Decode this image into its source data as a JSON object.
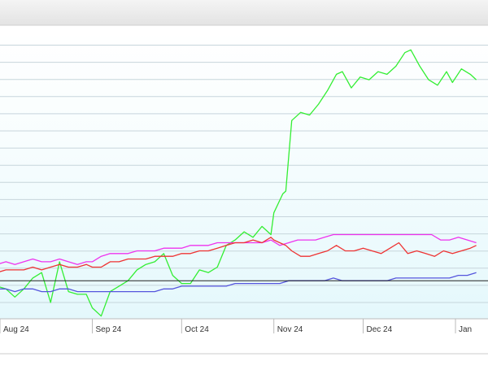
{
  "chart_data": {
    "type": "line",
    "x_labels": [
      "Aug 24",
      "Sep 24",
      "Oct 24",
      "Nov 24",
      "Dec 24",
      "Jan"
    ],
    "ylim": [
      0,
      100
    ],
    "grid": true,
    "reference_line": 14,
    "series": [
      {
        "color": "#33ee33",
        "points": [
          [
            "2024-07-25",
            14
          ],
          [
            "2024-07-28",
            1
          ],
          [
            "2024-07-31",
            12
          ],
          [
            "2024-08-03",
            11
          ],
          [
            "2024-08-06",
            8
          ],
          [
            "2024-08-09",
            11
          ],
          [
            "2024-08-12",
            15
          ],
          [
            "2024-08-15",
            17
          ],
          [
            "2024-08-18",
            6
          ],
          [
            "2024-08-21",
            21
          ],
          [
            "2024-08-24",
            10
          ],
          [
            "2024-08-27",
            9
          ],
          [
            "2024-08-30",
            9
          ],
          [
            "2024-09-01",
            4
          ],
          [
            "2024-09-04",
            1
          ],
          [
            "2024-09-07",
            10
          ],
          [
            "2024-09-10",
            12
          ],
          [
            "2024-09-13",
            14
          ],
          [
            "2024-09-16",
            18
          ],
          [
            "2024-09-19",
            20
          ],
          [
            "2024-09-22",
            21
          ],
          [
            "2024-09-25",
            24
          ],
          [
            "2024-09-28",
            16
          ],
          [
            "2024-10-01",
            13
          ],
          [
            "2024-10-04",
            13
          ],
          [
            "2024-10-07",
            18
          ],
          [
            "2024-10-10",
            17
          ],
          [
            "2024-10-13",
            19
          ],
          [
            "2024-10-16",
            27
          ],
          [
            "2024-10-19",
            29
          ],
          [
            "2024-10-22",
            32
          ],
          [
            "2024-10-25",
            30
          ],
          [
            "2024-10-28",
            34
          ],
          [
            "2024-10-31",
            31
          ],
          [
            "2024-11-01",
            39
          ],
          [
            "2024-11-04",
            46
          ],
          [
            "2024-11-05",
            47
          ],
          [
            "2024-11-07",
            73
          ],
          [
            "2024-11-10",
            76
          ],
          [
            "2024-11-13",
            75
          ],
          [
            "2024-11-16",
            79
          ],
          [
            "2024-11-19",
            84
          ],
          [
            "2024-11-22",
            90
          ],
          [
            "2024-11-24",
            91
          ],
          [
            "2024-11-27",
            85
          ],
          [
            "2024-11-30",
            89
          ],
          [
            "2024-12-03",
            88
          ],
          [
            "2024-12-06",
            91
          ],
          [
            "2024-12-09",
            90
          ],
          [
            "2024-12-12",
            93
          ],
          [
            "2024-12-15",
            98
          ],
          [
            "2024-12-17",
            99
          ],
          [
            "2024-12-20",
            93
          ],
          [
            "2024-12-23",
            88
          ],
          [
            "2024-12-26",
            86
          ],
          [
            "2024-12-29",
            91
          ],
          [
            "2024-12-31",
            87
          ],
          [
            "2025-01-03",
            92
          ],
          [
            "2025-01-06",
            90
          ],
          [
            "2025-01-08",
            88
          ]
        ]
      },
      {
        "color": "#ee33ee",
        "points": [
          [
            "2024-07-25",
            16
          ],
          [
            "2024-07-28",
            18
          ],
          [
            "2024-07-31",
            20
          ],
          [
            "2024-08-03",
            21
          ],
          [
            "2024-08-06",
            20
          ],
          [
            "2024-08-09",
            21
          ],
          [
            "2024-08-12",
            22
          ],
          [
            "2024-08-15",
            21
          ],
          [
            "2024-08-18",
            21
          ],
          [
            "2024-08-21",
            22
          ],
          [
            "2024-08-24",
            21
          ],
          [
            "2024-08-27",
            20
          ],
          [
            "2024-08-30",
            21
          ],
          [
            "2024-09-01",
            21
          ],
          [
            "2024-09-04",
            23
          ],
          [
            "2024-09-07",
            24
          ],
          [
            "2024-09-10",
            24
          ],
          [
            "2024-09-13",
            24
          ],
          [
            "2024-09-16",
            25
          ],
          [
            "2024-09-19",
            25
          ],
          [
            "2024-09-22",
            25
          ],
          [
            "2024-09-25",
            26
          ],
          [
            "2024-09-28",
            26
          ],
          [
            "2024-10-01",
            26
          ],
          [
            "2024-10-04",
            27
          ],
          [
            "2024-10-07",
            27
          ],
          [
            "2024-10-10",
            27
          ],
          [
            "2024-10-13",
            28
          ],
          [
            "2024-10-16",
            28
          ],
          [
            "2024-10-19",
            28
          ],
          [
            "2024-10-22",
            28
          ],
          [
            "2024-10-25",
            28
          ],
          [
            "2024-10-28",
            28
          ],
          [
            "2024-10-31",
            29
          ],
          [
            "2024-11-03",
            27
          ],
          [
            "2024-11-06",
            28
          ],
          [
            "2024-11-09",
            29
          ],
          [
            "2024-11-12",
            29
          ],
          [
            "2024-11-15",
            29
          ],
          [
            "2024-11-18",
            30
          ],
          [
            "2024-11-21",
            31
          ],
          [
            "2024-11-24",
            31
          ],
          [
            "2024-11-27",
            31
          ],
          [
            "2024-11-30",
            31
          ],
          [
            "2024-12-03",
            31
          ],
          [
            "2024-12-06",
            31
          ],
          [
            "2024-12-09",
            31
          ],
          [
            "2024-12-12",
            31
          ],
          [
            "2024-12-15",
            31
          ],
          [
            "2024-12-18",
            31
          ],
          [
            "2024-12-21",
            31
          ],
          [
            "2024-12-24",
            31
          ],
          [
            "2024-12-27",
            29
          ],
          [
            "2024-12-30",
            29
          ],
          [
            "2025-01-02",
            30
          ],
          [
            "2025-01-05",
            29
          ],
          [
            "2025-01-08",
            28
          ]
        ]
      },
      {
        "color": "#ee3333",
        "points": [
          [
            "2024-07-25",
            15
          ],
          [
            "2024-07-28",
            16
          ],
          [
            "2024-07-31",
            17
          ],
          [
            "2024-08-03",
            18
          ],
          [
            "2024-08-06",
            18
          ],
          [
            "2024-08-09",
            18
          ],
          [
            "2024-08-12",
            19
          ],
          [
            "2024-08-15",
            18
          ],
          [
            "2024-08-18",
            19
          ],
          [
            "2024-08-21",
            20
          ],
          [
            "2024-08-24",
            19
          ],
          [
            "2024-08-27",
            19
          ],
          [
            "2024-08-30",
            20
          ],
          [
            "2024-09-01",
            19
          ],
          [
            "2024-09-04",
            19
          ],
          [
            "2024-09-07",
            21
          ],
          [
            "2024-09-10",
            21
          ],
          [
            "2024-09-13",
            22
          ],
          [
            "2024-09-16",
            22
          ],
          [
            "2024-09-19",
            22
          ],
          [
            "2024-09-22",
            23
          ],
          [
            "2024-09-25",
            23
          ],
          [
            "2024-09-28",
            23
          ],
          [
            "2024-10-01",
            24
          ],
          [
            "2024-10-04",
            24
          ],
          [
            "2024-10-07",
            25
          ],
          [
            "2024-10-10",
            25
          ],
          [
            "2024-10-13",
            26
          ],
          [
            "2024-10-16",
            27
          ],
          [
            "2024-10-19",
            28
          ],
          [
            "2024-10-22",
            28
          ],
          [
            "2024-10-25",
            29
          ],
          [
            "2024-10-28",
            28
          ],
          [
            "2024-10-31",
            30
          ],
          [
            "2024-11-01",
            29
          ],
          [
            "2024-11-03",
            28
          ],
          [
            "2024-11-05",
            27
          ],
          [
            "2024-11-07",
            25
          ],
          [
            "2024-11-10",
            23
          ],
          [
            "2024-11-13",
            23
          ],
          [
            "2024-11-16",
            24
          ],
          [
            "2024-11-19",
            25
          ],
          [
            "2024-11-22",
            27
          ],
          [
            "2024-11-25",
            25
          ],
          [
            "2024-11-28",
            25
          ],
          [
            "2024-12-01",
            26
          ],
          [
            "2024-12-04",
            25
          ],
          [
            "2024-12-07",
            24
          ],
          [
            "2024-12-10",
            26
          ],
          [
            "2024-12-13",
            28
          ],
          [
            "2024-12-16",
            24
          ],
          [
            "2024-12-19",
            25
          ],
          [
            "2024-12-22",
            24
          ],
          [
            "2024-12-25",
            23
          ],
          [
            "2024-12-28",
            25
          ],
          [
            "2024-12-31",
            24
          ],
          [
            "2025-01-03",
            25
          ],
          [
            "2025-01-06",
            26
          ],
          [
            "2025-01-08",
            27
          ]
        ]
      },
      {
        "color": "#5555dd",
        "points": [
          [
            "2024-07-25",
            11
          ],
          [
            "2024-07-28",
            11
          ],
          [
            "2024-07-31",
            11
          ],
          [
            "2024-08-03",
            11
          ],
          [
            "2024-08-06",
            10
          ],
          [
            "2024-08-09",
            11
          ],
          [
            "2024-08-12",
            11
          ],
          [
            "2024-08-15",
            10
          ],
          [
            "2024-08-18",
            10
          ],
          [
            "2024-08-21",
            11
          ],
          [
            "2024-08-24",
            11
          ],
          [
            "2024-08-27",
            10
          ],
          [
            "2024-08-30",
            10
          ],
          [
            "2024-09-01",
            10
          ],
          [
            "2024-09-04",
            10
          ],
          [
            "2024-09-07",
            10
          ],
          [
            "2024-09-10",
            10
          ],
          [
            "2024-09-13",
            10
          ],
          [
            "2024-09-16",
            10
          ],
          [
            "2024-09-19",
            10
          ],
          [
            "2024-09-22",
            10
          ],
          [
            "2024-09-25",
            11
          ],
          [
            "2024-09-28",
            11
          ],
          [
            "2024-10-01",
            12
          ],
          [
            "2024-10-04",
            12
          ],
          [
            "2024-10-07",
            12
          ],
          [
            "2024-10-10",
            12
          ],
          [
            "2024-10-13",
            12
          ],
          [
            "2024-10-16",
            12
          ],
          [
            "2024-10-19",
            13
          ],
          [
            "2024-10-22",
            13
          ],
          [
            "2024-10-25",
            13
          ],
          [
            "2024-10-28",
            13
          ],
          [
            "2024-10-31",
            13
          ],
          [
            "2024-11-03",
            13
          ],
          [
            "2024-11-06",
            14
          ],
          [
            "2024-11-09",
            14
          ],
          [
            "2024-11-12",
            14
          ],
          [
            "2024-11-15",
            14
          ],
          [
            "2024-11-18",
            14
          ],
          [
            "2024-11-21",
            15
          ],
          [
            "2024-11-24",
            14
          ],
          [
            "2024-11-27",
            14
          ],
          [
            "2024-11-30",
            14
          ],
          [
            "2024-12-03",
            14
          ],
          [
            "2024-12-06",
            14
          ],
          [
            "2024-12-09",
            14
          ],
          [
            "2024-12-12",
            15
          ],
          [
            "2024-12-15",
            15
          ],
          [
            "2024-12-18",
            15
          ],
          [
            "2024-12-21",
            15
          ],
          [
            "2024-12-24",
            15
          ],
          [
            "2024-12-27",
            15
          ],
          [
            "2024-12-30",
            15
          ],
          [
            "2025-01-02",
            16
          ],
          [
            "2025-01-05",
            16
          ],
          [
            "2025-01-08",
            17
          ]
        ]
      }
    ]
  }
}
